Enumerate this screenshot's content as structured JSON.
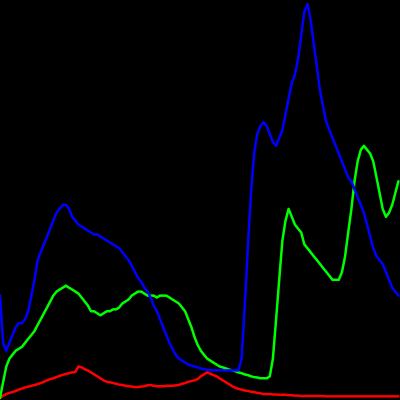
{
  "chart_data": {
    "type": "line",
    "background": "#000000",
    "grid": false,
    "legend": "none",
    "xlim": [
      0,
      255
    ],
    "ylim": [
      0,
      100
    ],
    "x": [
      0,
      2,
      4,
      6,
      8,
      10,
      12,
      14,
      16,
      18,
      20,
      22,
      24,
      26,
      28,
      30,
      32,
      34,
      36,
      38,
      40,
      42,
      44,
      46,
      48,
      50,
      52,
      54,
      56,
      58,
      60,
      62,
      64,
      66,
      68,
      70,
      72,
      74,
      76,
      78,
      80,
      82,
      84,
      86,
      88,
      90,
      92,
      94,
      96,
      98,
      100,
      102,
      104,
      106,
      108,
      110,
      112,
      114,
      116,
      118,
      120,
      122,
      124,
      126,
      128,
      130,
      132,
      134,
      136,
      138,
      140,
      142,
      144,
      146,
      148,
      150,
      152,
      154,
      156,
      158,
      160,
      162,
      164,
      166,
      168,
      170,
      172,
      174,
      176,
      178,
      180,
      182,
      184,
      186,
      188,
      190,
      192,
      194,
      196,
      198,
      200,
      202,
      204,
      206,
      208,
      210,
      212,
      214,
      216,
      218,
      220,
      222,
      224,
      226,
      228,
      230,
      232,
      234,
      236,
      238,
      240,
      242,
      244,
      246,
      248,
      250,
      252,
      254
    ],
    "series": [
      {
        "color": "#ff0000",
        "values": [
          0,
          0.6,
          1.0,
          1.3,
          1.5,
          1.8,
          2.1,
          2.4,
          2.7,
          2.9,
          3.1,
          3.3,
          3.5,
          3.8,
          4.1,
          4.5,
          4.8,
          5.0,
          5.3,
          5.6,
          5.9,
          6.1,
          6.3,
          6.5,
          6.6,
          8.0,
          7.8,
          7.3,
          7.0,
          6.5,
          6.0,
          5.5,
          5.0,
          4.5,
          4.1,
          4.0,
          3.8,
          3.6,
          3.4,
          3.3,
          3.1,
          3.0,
          2.9,
          2.8,
          2.8,
          2.9,
          3.0,
          3.2,
          3.3,
          3.1,
          3.0,
          3.0,
          3.0,
          3.1,
          3.1,
          3.1,
          3.2,
          3.3,
          3.6,
          3.8,
          4.1,
          4.3,
          4.5,
          4.8,
          5.5,
          6.0,
          6.5,
          6.2,
          5.8,
          5.5,
          5.0,
          4.5,
          4.0,
          3.5,
          3.0,
          2.6,
          2.3,
          2.1,
          1.9,
          1.8,
          1.6,
          1.5,
          1.3,
          1.2,
          1.0,
          1.0,
          1.0,
          0.9,
          0.9,
          0.8,
          0.8,
          0.8,
          0.7,
          0.7,
          0.6,
          0.6,
          0.5,
          0.5,
          0.5,
          0.5,
          0.5,
          0.5,
          0.5,
          0.5,
          0.4,
          0.4,
          0.4,
          0.4,
          0.4,
          0.4,
          0.4,
          0.4,
          0.4,
          0.4,
          0.4,
          0.4,
          0.4,
          0.4,
          0.4,
          0.4,
          0.4,
          0.4,
          0.4,
          0.4,
          0.4,
          0.4,
          0.4,
          0.4
        ]
      },
      {
        "color": "#00ff00",
        "values": [
          0,
          4,
          8,
          10,
          11,
          12,
          12.5,
          13,
          14,
          15,
          16,
          17,
          18.5,
          20,
          21.5,
          23,
          24.5,
          26,
          27,
          27.5,
          28,
          28.5,
          28,
          27.5,
          27,
          26.5,
          25.5,
          24.5,
          23.5,
          22,
          22,
          21.5,
          21,
          21.5,
          22,
          22,
          22.5,
          22.5,
          23,
          24,
          24.5,
          25,
          26,
          26.5,
          27,
          27,
          26.5,
          26,
          26,
          26,
          25.5,
          26,
          26,
          26,
          25.5,
          25,
          24.5,
          24,
          23,
          22,
          20,
          18,
          15.5,
          13.5,
          12,
          11,
          10,
          9.5,
          9.0,
          8.5,
          8.0,
          7.8,
          7.5,
          7.2,
          7.0,
          6.8,
          6.5,
          6.3,
          6.0,
          5.8,
          5.5,
          5.3,
          5.2,
          5.0,
          5.0,
          5.0,
          5.5,
          10,
          20,
          30,
          40,
          45,
          48,
          46,
          44,
          43,
          42,
          39,
          38,
          37,
          36,
          35,
          34,
          33,
          32,
          31,
          30,
          30,
          30,
          32,
          36,
          42,
          48,
          55,
          60,
          63,
          64,
          63,
          62,
          60,
          56,
          52,
          48,
          46,
          47,
          49,
          52,
          55
        ]
      },
      {
        "color": "#0000ff",
        "values": [
          26,
          14,
          12,
          14,
          16,
          18,
          19,
          19,
          20,
          22,
          26,
          30,
          35,
          37,
          39,
          41,
          43,
          45,
          47,
          48,
          49,
          49,
          48,
          46,
          45,
          44,
          43.5,
          43,
          42.5,
          42,
          41.5,
          41.5,
          41,
          40.5,
          40,
          39.5,
          39,
          38.5,
          38,
          37,
          36,
          35,
          33.5,
          32,
          30.5,
          29.5,
          28,
          27,
          25.5,
          23.5,
          22,
          20,
          18,
          16,
          14,
          12.5,
          11,
          10,
          9.5,
          9,
          8.5,
          8.2,
          8,
          7.8,
          7.5,
          7.3,
          7.2,
          7.1,
          7.0,
          7.0,
          7.0,
          7.0,
          7.0,
          7.0,
          7.0,
          7.0,
          7.0,
          10,
          23,
          38,
          52,
          62,
          67,
          69,
          70,
          69,
          67,
          65,
          64,
          66,
          68,
          72,
          76,
          80,
          82,
          86,
          92,
          98,
          100,
          96,
          90,
          84,
          78,
          74,
          70,
          68,
          66,
          64,
          62,
          60,
          58,
          56,
          55,
          53,
          51,
          49,
          47,
          44,
          41,
          38,
          36,
          35,
          34,
          32,
          30,
          28,
          27,
          26
        ]
      }
    ]
  }
}
